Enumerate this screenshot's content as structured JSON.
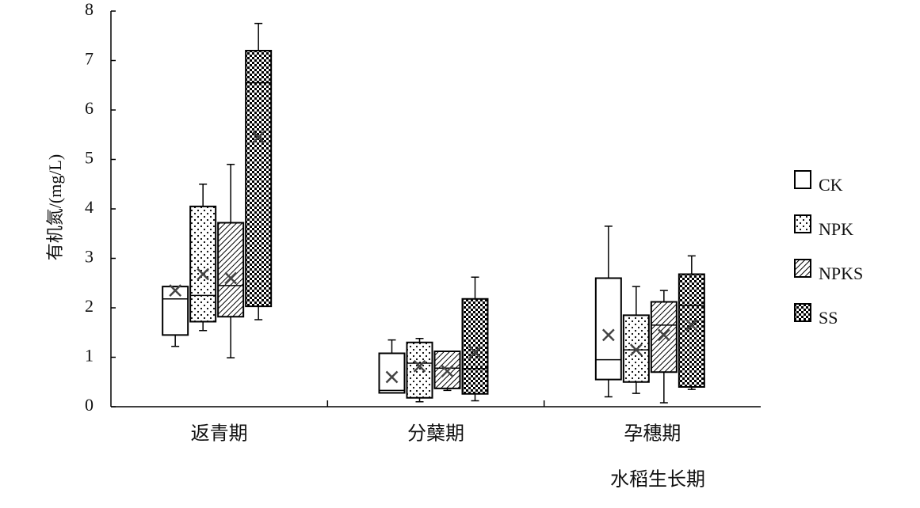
{
  "chart_data": {
    "type": "box",
    "y_label": "有机氮/(mg/L)",
    "x_label": "水稻生长期",
    "categories": [
      "返青期",
      "分蘖期",
      "孕穗期"
    ],
    "ylim": [
      0,
      8
    ],
    "yticks": [
      0,
      1,
      2,
      3,
      4,
      5,
      6,
      7,
      8
    ],
    "series": [
      {
        "name": "CK",
        "pattern": "none",
        "color": "#000000",
        "min": [
          1.22,
          0.28,
          0.2
        ],
        "q1": [
          1.45,
          0.28,
          0.55
        ],
        "median": [
          2.18,
          0.33,
          0.95
        ],
        "q3": [
          2.43,
          1.08,
          2.6
        ],
        "max": [
          2.43,
          1.35,
          3.65
        ],
        "mean": [
          2.35,
          0.6,
          1.45
        ]
      },
      {
        "name": "NPK",
        "pattern": "dots",
        "color": "#000000",
        "min": [
          1.54,
          0.1,
          0.27
        ],
        "q1": [
          1.72,
          0.18,
          0.5
        ],
        "median": [
          2.25,
          0.88,
          1.15
        ],
        "q3": [
          4.05,
          1.3,
          1.85
        ],
        "max": [
          4.5,
          1.38,
          2.43
        ],
        "mean": [
          2.68,
          0.82,
          1.15
        ]
      },
      {
        "name": "NPKS",
        "pattern": "hatch",
        "color": "#000000",
        "min": [
          0.99,
          0.33,
          0.08
        ],
        "q1": [
          1.82,
          0.37,
          0.7
        ],
        "median": [
          2.45,
          0.78,
          1.65
        ],
        "q3": [
          3.72,
          1.12,
          2.12
        ],
        "max": [
          4.9,
          1.12,
          2.35
        ],
        "mean": [
          2.6,
          0.72,
          1.45
        ]
      },
      {
        "name": "SS",
        "pattern": "checker",
        "color": "#000000",
        "min": [
          1.76,
          0.12,
          0.35
        ],
        "q1": [
          2.03,
          0.26,
          0.4
        ],
        "median": [
          6.55,
          0.77,
          2.05
        ],
        "q3": [
          7.2,
          2.18,
          2.68
        ],
        "max": [
          7.75,
          2.62,
          3.05
        ],
        "mean": [
          5.45,
          1.1,
          1.65
        ]
      }
    ]
  }
}
